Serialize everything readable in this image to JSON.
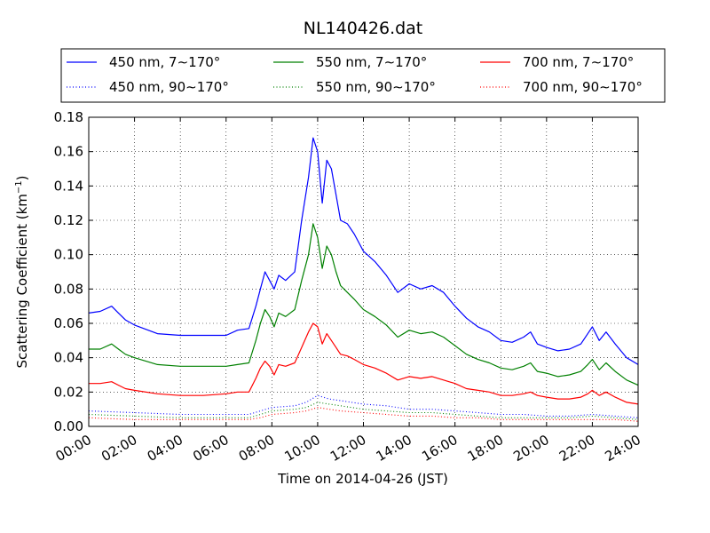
{
  "chart_data": {
    "type": "line",
    "title": "NL140426.dat",
    "xlabel": "Time on 2014-04-26 (JST)",
    "ylabel_main": "Scattering Coefficient (km",
    "ylabel_sup": "−1",
    "ylabel_close": ")",
    "xlim": [
      0,
      24
    ],
    "ylim": [
      0,
      0.18
    ],
    "x_ticks": [
      0,
      2,
      4,
      6,
      8,
      10,
      12,
      14,
      16,
      18,
      20,
      22,
      24
    ],
    "x_tick_labels": [
      "00:00",
      "02:00",
      "04:00",
      "06:00",
      "08:00",
      "10:00",
      "12:00",
      "14:00",
      "16:00",
      "18:00",
      "20:00",
      "22:00",
      "24:00"
    ],
    "y_ticks": [
      0,
      0.02,
      0.04,
      0.06,
      0.08,
      0.1,
      0.12,
      0.14,
      0.16,
      0.18
    ],
    "y_tick_labels": [
      "0.00",
      "0.02",
      "0.04",
      "0.06",
      "0.08",
      "0.10",
      "0.12",
      "0.14",
      "0.16",
      "0.18"
    ],
    "grid": true,
    "legend_placement": "top",
    "x_unit": "hours",
    "series": [
      {
        "name": "450 nm, 7∼170°",
        "color": "#0000ff",
        "style": "solid",
        "x": [
          0,
          0.5,
          1.0,
          1.3,
          1.6,
          2,
          3,
          4,
          5,
          6,
          6.5,
          7,
          7.3,
          7.5,
          7.7,
          7.9,
          8.1,
          8.3,
          8.6,
          9.0,
          9.3,
          9.6,
          9.8,
          10.0,
          10.2,
          10.4,
          10.6,
          10.8,
          11.0,
          11.3,
          11.6,
          12,
          12.5,
          13,
          13.5,
          14,
          14.5,
          15,
          15.5,
          16,
          16.5,
          17,
          17.5,
          18,
          18.5,
          19,
          19.3,
          19.6,
          20,
          20.5,
          21,
          21.5,
          21.8,
          22,
          22.3,
          22.6,
          23,
          23.5,
          24
        ],
        "y": [
          0.066,
          0.067,
          0.07,
          0.066,
          0.062,
          0.059,
          0.054,
          0.053,
          0.053,
          0.053,
          0.056,
          0.057,
          0.07,
          0.08,
          0.09,
          0.085,
          0.08,
          0.088,
          0.085,
          0.09,
          0.12,
          0.145,
          0.168,
          0.16,
          0.13,
          0.155,
          0.15,
          0.135,
          0.12,
          0.118,
          0.112,
          0.102,
          0.096,
          0.088,
          0.078,
          0.083,
          0.08,
          0.082,
          0.078,
          0.07,
          0.063,
          0.058,
          0.055,
          0.05,
          0.049,
          0.052,
          0.055,
          0.048,
          0.046,
          0.044,
          0.045,
          0.048,
          0.054,
          0.058,
          0.05,
          0.055,
          0.048,
          0.04,
          0.036
        ]
      },
      {
        "name": "550 nm, 7∼170°",
        "color": "#008000",
        "style": "solid",
        "x": [
          0,
          0.5,
          1.0,
          1.3,
          1.6,
          2,
          3,
          4,
          5,
          6,
          6.5,
          7,
          7.3,
          7.5,
          7.7,
          7.9,
          8.1,
          8.3,
          8.6,
          9.0,
          9.3,
          9.6,
          9.8,
          10.0,
          10.2,
          10.4,
          10.6,
          10.8,
          11.0,
          11.3,
          11.6,
          12,
          12.5,
          13,
          13.5,
          14,
          14.5,
          15,
          15.5,
          16,
          16.5,
          17,
          17.5,
          18,
          18.5,
          19,
          19.3,
          19.6,
          20,
          20.5,
          21,
          21.5,
          21.8,
          22,
          22.3,
          22.6,
          23,
          23.5,
          24
        ],
        "y": [
          0.045,
          0.045,
          0.048,
          0.045,
          0.042,
          0.04,
          0.036,
          0.035,
          0.035,
          0.035,
          0.036,
          0.037,
          0.05,
          0.06,
          0.068,
          0.064,
          0.058,
          0.066,
          0.064,
          0.068,
          0.085,
          0.1,
          0.118,
          0.11,
          0.092,
          0.105,
          0.1,
          0.09,
          0.082,
          0.078,
          0.074,
          0.068,
          0.064,
          0.059,
          0.052,
          0.056,
          0.054,
          0.055,
          0.052,
          0.047,
          0.042,
          0.039,
          0.037,
          0.034,
          0.033,
          0.035,
          0.037,
          0.032,
          0.031,
          0.029,
          0.03,
          0.032,
          0.036,
          0.039,
          0.033,
          0.037,
          0.032,
          0.027,
          0.024
        ]
      },
      {
        "name": "700 nm, 7∼170°",
        "color": "#ff0000",
        "style": "solid",
        "x": [
          0,
          0.5,
          1.0,
          1.3,
          1.6,
          2,
          3,
          4,
          5,
          6,
          6.5,
          7,
          7.3,
          7.5,
          7.7,
          7.9,
          8.1,
          8.3,
          8.6,
          9.0,
          9.3,
          9.6,
          9.8,
          10.0,
          10.2,
          10.4,
          10.6,
          10.8,
          11.0,
          11.3,
          11.6,
          12,
          12.5,
          13,
          13.5,
          14,
          14.5,
          15,
          15.5,
          16,
          16.5,
          17,
          17.5,
          18,
          18.5,
          19,
          19.3,
          19.6,
          20,
          20.5,
          21,
          21.5,
          21.8,
          22,
          22.3,
          22.6,
          23,
          23.5,
          24
        ],
        "y": [
          0.025,
          0.025,
          0.026,
          0.024,
          0.022,
          0.021,
          0.019,
          0.018,
          0.018,
          0.019,
          0.02,
          0.02,
          0.028,
          0.034,
          0.038,
          0.035,
          0.03,
          0.036,
          0.035,
          0.037,
          0.046,
          0.055,
          0.06,
          0.058,
          0.048,
          0.054,
          0.05,
          0.046,
          0.042,
          0.041,
          0.039,
          0.036,
          0.034,
          0.031,
          0.027,
          0.029,
          0.028,
          0.029,
          0.027,
          0.025,
          0.022,
          0.021,
          0.02,
          0.018,
          0.018,
          0.019,
          0.02,
          0.018,
          0.017,
          0.016,
          0.016,
          0.017,
          0.019,
          0.021,
          0.018,
          0.02,
          0.017,
          0.014,
          0.013
        ]
      },
      {
        "name": "450 nm, 90∼170°",
        "color": "#0000ff",
        "style": "dotted",
        "x": [
          0,
          2,
          4,
          6,
          7,
          7.5,
          8,
          9,
          9.5,
          10,
          10.5,
          11,
          12,
          13,
          14,
          15,
          16,
          17,
          18,
          19,
          20,
          21,
          22,
          23,
          24
        ],
        "y": [
          0.009,
          0.008,
          0.007,
          0.007,
          0.007,
          0.009,
          0.011,
          0.012,
          0.014,
          0.018,
          0.016,
          0.015,
          0.013,
          0.012,
          0.01,
          0.01,
          0.009,
          0.008,
          0.007,
          0.007,
          0.006,
          0.006,
          0.007,
          0.006,
          0.005
        ]
      },
      {
        "name": "550 nm, 90∼170°",
        "color": "#008000",
        "style": "dotted",
        "x": [
          0,
          2,
          4,
          6,
          7,
          7.5,
          8,
          9,
          9.5,
          10,
          10.5,
          11,
          12,
          13,
          14,
          15,
          16,
          17,
          18,
          19,
          20,
          21,
          22,
          23,
          24
        ],
        "y": [
          0.007,
          0.006,
          0.005,
          0.005,
          0.005,
          0.007,
          0.009,
          0.01,
          0.011,
          0.014,
          0.013,
          0.012,
          0.01,
          0.009,
          0.008,
          0.008,
          0.007,
          0.006,
          0.005,
          0.005,
          0.005,
          0.005,
          0.006,
          0.005,
          0.004
        ]
      },
      {
        "name": "700 nm, 90∼170°",
        "color": "#ff0000",
        "style": "dotted",
        "x": [
          0,
          2,
          4,
          6,
          7,
          7.5,
          8,
          9,
          9.5,
          10,
          10.5,
          11,
          12,
          13,
          14,
          15,
          16,
          17,
          18,
          19,
          20,
          21,
          22,
          23,
          24
        ],
        "y": [
          0.005,
          0.004,
          0.004,
          0.004,
          0.004,
          0.005,
          0.007,
          0.008,
          0.009,
          0.011,
          0.01,
          0.009,
          0.008,
          0.007,
          0.006,
          0.006,
          0.005,
          0.005,
          0.004,
          0.004,
          0.004,
          0.004,
          0.004,
          0.004,
          0.003
        ]
      }
    ]
  }
}
